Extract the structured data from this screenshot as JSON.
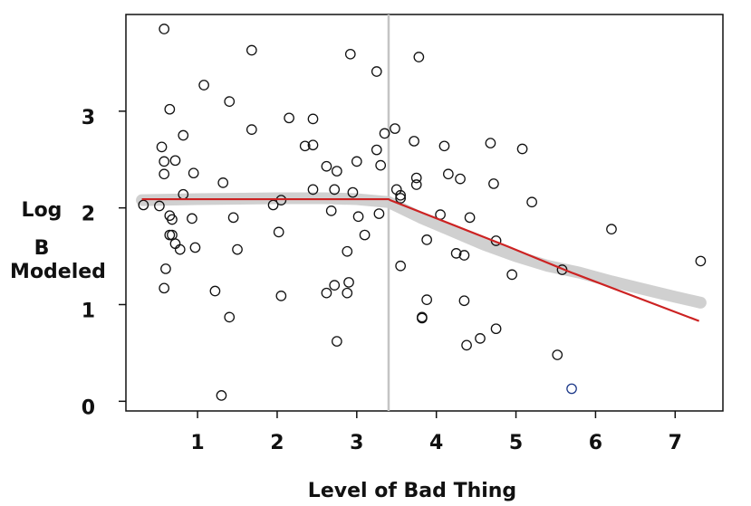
{
  "chart_data": {
    "type": "scatter",
    "title": "",
    "xlabel": "Level of Bad Thing",
    "ylabel_lines": [
      "Log",
      "B",
      "Modeled"
    ],
    "xlim": [
      0.1,
      7.6
    ],
    "ylim": [
      -0.1,
      4.0
    ],
    "xticks": [
      1,
      2,
      3,
      4,
      5,
      6,
      7
    ],
    "yticks": [
      0,
      1,
      2,
      3
    ],
    "grid": false,
    "legend": "none",
    "vline_x": 3.4,
    "points": [
      [
        0.58,
        3.85
      ],
      [
        0.65,
        3.02
      ],
      [
        0.55,
        2.63
      ],
      [
        0.58,
        2.48
      ],
      [
        0.72,
        2.49
      ],
      [
        0.58,
        2.35
      ],
      [
        0.82,
        2.75
      ],
      [
        0.95,
        2.36
      ],
      [
        0.82,
        2.14
      ],
      [
        0.32,
        2.03
      ],
      [
        0.52,
        2.02
      ],
      [
        0.65,
        1.92
      ],
      [
        0.68,
        1.88
      ],
      [
        0.93,
        1.89
      ],
      [
        0.65,
        1.72
      ],
      [
        0.68,
        1.72
      ],
      [
        0.72,
        1.63
      ],
      [
        0.78,
        1.57
      ],
      [
        0.97,
        1.59
      ],
      [
        0.6,
        1.37
      ],
      [
        0.58,
        1.17
      ],
      [
        1.08,
        3.27
      ],
      [
        1.4,
        3.1
      ],
      [
        1.32,
        2.26
      ],
      [
        1.45,
        1.9
      ],
      [
        1.5,
        1.57
      ],
      [
        1.22,
        1.14
      ],
      [
        1.4,
        0.87
      ],
      [
        1.3,
        0.06
      ],
      [
        1.68,
        3.63
      ],
      [
        1.68,
        2.81
      ],
      [
        2.15,
        2.93
      ],
      [
        2.35,
        2.64
      ],
      [
        2.45,
        2.65
      ],
      [
        2.45,
        2.92
      ],
      [
        2.45,
        2.19
      ],
      [
        1.95,
        2.03
      ],
      [
        2.05,
        2.08
      ],
      [
        2.02,
        1.75
      ],
      [
        2.05,
        1.09
      ],
      [
        2.62,
        2.43
      ],
      [
        2.75,
        2.38
      ],
      [
        2.72,
        2.19
      ],
      [
        2.68,
        1.97
      ],
      [
        2.88,
        1.55
      ],
      [
        2.9,
        1.23
      ],
      [
        2.72,
        1.2
      ],
      [
        2.62,
        1.12
      ],
      [
        2.88,
        1.12
      ],
      [
        2.75,
        0.62
      ],
      [
        2.92,
        3.59
      ],
      [
        3.0,
        2.48
      ],
      [
        2.95,
        2.16
      ],
      [
        3.02,
        1.91
      ],
      [
        3.1,
        1.72
      ],
      [
        3.25,
        3.41
      ],
      [
        3.3,
        2.44
      ],
      [
        3.25,
        2.6
      ],
      [
        3.35,
        2.77
      ],
      [
        3.28,
        1.94
      ],
      [
        3.48,
        2.82
      ],
      [
        3.5,
        2.19
      ],
      [
        3.55,
        2.13
      ],
      [
        3.55,
        2.1
      ],
      [
        3.55,
        1.4
      ],
      [
        3.78,
        3.56
      ],
      [
        3.72,
        2.69
      ],
      [
        3.75,
        2.31
      ],
      [
        3.75,
        2.24
      ],
      [
        3.88,
        1.67
      ],
      [
        3.82,
        0.87
      ],
      [
        3.82,
        0.86
      ],
      [
        3.88,
        1.05
      ],
      [
        4.05,
        1.93
      ],
      [
        4.1,
        2.64
      ],
      [
        4.15,
        2.35
      ],
      [
        4.25,
        1.53
      ],
      [
        4.3,
        2.3
      ],
      [
        4.35,
        1.51
      ],
      [
        4.35,
        1.04
      ],
      [
        4.42,
        1.9
      ],
      [
        4.38,
        0.58
      ],
      [
        4.55,
        0.65
      ],
      [
        4.68,
        2.67
      ],
      [
        4.72,
        2.25
      ],
      [
        4.75,
        1.66
      ],
      [
        4.75,
        0.75
      ],
      [
        4.95,
        1.31
      ],
      [
        5.08,
        2.61
      ],
      [
        5.2,
        2.06
      ],
      [
        5.52,
        0.48
      ],
      [
        5.58,
        1.36
      ],
      [
        5.7,
        0.13
      ],
      [
        6.2,
        1.78
      ],
      [
        7.32,
        1.45
      ]
    ],
    "smooth_gray": {
      "x": [
        0.3,
        1.0,
        2.0,
        2.6,
        3.0,
        3.4,
        3.8,
        4.2,
        4.6,
        5.0,
        5.4,
        5.8,
        6.2,
        6.6,
        7.0,
        7.32
      ],
      "y": [
        2.08,
        2.09,
        2.1,
        2.1,
        2.09,
        2.06,
        1.9,
        1.76,
        1.62,
        1.5,
        1.4,
        1.33,
        1.24,
        1.16,
        1.08,
        1.02
      ]
    },
    "fit_red": {
      "x": [
        0.3,
        3.4,
        3.42,
        4.9,
        5.7,
        7.3
      ],
      "y": [
        2.09,
        2.09,
        2.08,
        1.6,
        1.33,
        0.83
      ]
    },
    "colors": {
      "points": "#111111",
      "fit": "#cc2222",
      "smooth": "#cdcdcd",
      "vline": "#c4c4c4",
      "frame": "#111111",
      "highlight_point": "#1f3b8a"
    }
  }
}
